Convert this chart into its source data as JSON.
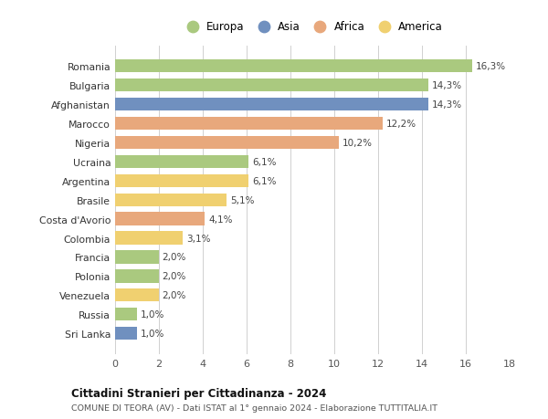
{
  "categories": [
    "Romania",
    "Bulgaria",
    "Afghanistan",
    "Marocco",
    "Nigeria",
    "Ucraina",
    "Argentina",
    "Brasile",
    "Costa d'Avorio",
    "Colombia",
    "Francia",
    "Polonia",
    "Venezuela",
    "Russia",
    "Sri Lanka"
  ],
  "values": [
    16.3,
    14.3,
    14.3,
    12.2,
    10.2,
    6.1,
    6.1,
    5.1,
    4.1,
    3.1,
    2.0,
    2.0,
    2.0,
    1.0,
    1.0
  ],
  "labels": [
    "16,3%",
    "14,3%",
    "14,3%",
    "12,2%",
    "10,2%",
    "6,1%",
    "6,1%",
    "5,1%",
    "4,1%",
    "3,1%",
    "2,0%",
    "2,0%",
    "2,0%",
    "1,0%",
    "1,0%"
  ],
  "continents": [
    "Europa",
    "Europa",
    "Asia",
    "Africa",
    "Africa",
    "Europa",
    "America",
    "America",
    "Africa",
    "America",
    "Europa",
    "Europa",
    "America",
    "Europa",
    "Asia"
  ],
  "colors": {
    "Europa": "#aac97f",
    "Asia": "#7090bf",
    "Africa": "#e8a87c",
    "America": "#f0d070"
  },
  "legend_order": [
    "Europa",
    "Asia",
    "Africa",
    "America"
  ],
  "title1": "Cittadini Stranieri per Cittadinanza - 2024",
  "title2": "COMUNE DI TEORA (AV) - Dati ISTAT al 1° gennaio 2024 - Elaborazione TUTTITALIA.IT",
  "xlim": [
    0,
    18
  ],
  "xticks": [
    0,
    2,
    4,
    6,
    8,
    10,
    12,
    14,
    16,
    18
  ],
  "background_color": "#ffffff",
  "grid_color": "#d0d0d0"
}
